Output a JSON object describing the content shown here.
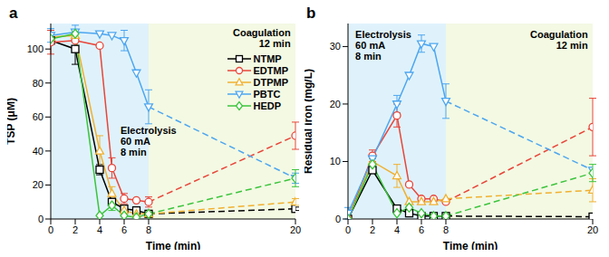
{
  "chart_data": [
    {
      "type": "line",
      "title": "a",
      "x_label": "Time (min)",
      "y_label": "TSP (μM)",
      "x": [
        0,
        2,
        4,
        5,
        6,
        7,
        8,
        20
      ],
      "xlim": [
        0,
        20
      ],
      "xticks": [
        0,
        2,
        4,
        6,
        8,
        20
      ],
      "ylim": [
        0,
        115
      ],
      "yticks": [
        0,
        20,
        40,
        60,
        80,
        100
      ],
      "legend": "right",
      "series": [
        {
          "name": "NTMP",
          "color": "#000000",
          "marker": "square",
          "values": [
            105,
            100,
            29,
            10,
            6,
            5,
            3,
            6
          ],
          "errors": [
            null,
            9,
            3,
            2,
            null,
            null,
            null,
            1
          ]
        },
        {
          "name": "EDTMP",
          "color": "#e8463a",
          "marker": "circle",
          "values": [
            104,
            105,
            102,
            30,
            12,
            11,
            10,
            49
          ],
          "errors": [
            7,
            null,
            null,
            6,
            3,
            null,
            3,
            8
          ]
        },
        {
          "name": "DTPMP",
          "color": "#f0b030",
          "marker": "triangle",
          "values": [
            107,
            108,
            40,
            15,
            5,
            3,
            3,
            10
          ],
          "errors": [
            null,
            null,
            9,
            4,
            null,
            null,
            null,
            2
          ]
        },
        {
          "name": "PBTC",
          "color": "#4da6f0",
          "marker": "triangle-down",
          "values": [
            108,
            110,
            109,
            108,
            105,
            86,
            66,
            24
          ],
          "errors": [
            4,
            4,
            null,
            null,
            6,
            null,
            10,
            3
          ]
        },
        {
          "name": "HEDP",
          "color": "#3cc43c",
          "marker": "diamond",
          "values": [
            106,
            109,
            2,
            8,
            2,
            1,
            3,
            24
          ],
          "errors": [
            null,
            null,
            null,
            3,
            null,
            null,
            null,
            5
          ]
        }
      ],
      "annotations": [
        {
          "text": [
            "Electrolysis",
            "60 mA",
            "8 min"
          ],
          "x_range": [
            0,
            8
          ],
          "color": "#dff2fb"
        },
        {
          "text": [
            "Coagulation",
            "12 min"
          ],
          "x_range": [
            8,
            20
          ],
          "color": "#f3f9e3"
        }
      ]
    },
    {
      "type": "line",
      "title": "b",
      "x_label": "Time (min)",
      "y_label": "Residual iron (mg/L)",
      "x": [
        0,
        2,
        4,
        5,
        6,
        7,
        8,
        20
      ],
      "xlim": [
        0,
        20
      ],
      "xticks": [
        0,
        2,
        4,
        6,
        8,
        20
      ],
      "ylim": [
        0,
        34
      ],
      "yticks": [
        0,
        10,
        20,
        30
      ],
      "series": [
        {
          "name": "NTMP",
          "color": "#000000",
          "marker": "square",
          "values": [
            0,
            8.5,
            1.8,
            1,
            0.5,
            0.5,
            0.5,
            0.4
          ],
          "errors": [
            null,
            null,
            null,
            null,
            null,
            null,
            null,
            null
          ]
        },
        {
          "name": "EDTMP",
          "color": "#e8463a",
          "marker": "circle",
          "values": [
            0,
            11,
            18,
            6,
            3.5,
            3.5,
            3,
            16
          ],
          "errors": [
            null,
            1,
            2,
            null,
            null,
            null,
            null,
            5
          ]
        },
        {
          "name": "DTPMP",
          "color": "#f0b030",
          "marker": "triangle",
          "values": [
            0,
            10,
            7.5,
            3,
            3,
            3,
            3.5,
            5
          ],
          "errors": [
            null,
            null,
            2,
            null,
            null,
            null,
            null,
            2
          ]
        },
        {
          "name": "PBTC",
          "color": "#4da6f0",
          "marker": "triangle-down",
          "values": [
            1,
            10.5,
            20,
            25,
            30.5,
            30,
            20.5,
            8.5
          ],
          "errors": [
            1,
            null,
            1.5,
            null,
            1.5,
            null,
            3,
            null
          ]
        },
        {
          "name": "HEDP",
          "color": "#3cc43c",
          "marker": "diamond",
          "values": [
            0,
            9.5,
            1,
            2,
            1,
            0.5,
            0.5,
            8
          ],
          "errors": [
            null,
            1,
            null,
            null,
            null,
            null,
            null,
            1.5
          ]
        }
      ],
      "annotations": [
        {
          "text": [
            "Electrolysis",
            "60 mA",
            "8 min"
          ],
          "x_range": [
            0,
            8
          ],
          "color": "#dff2fb"
        },
        {
          "text": [
            "Coagulation",
            "12 min"
          ],
          "x_range": [
            8,
            20
          ],
          "color": "#f3f9e3"
        }
      ]
    }
  ]
}
